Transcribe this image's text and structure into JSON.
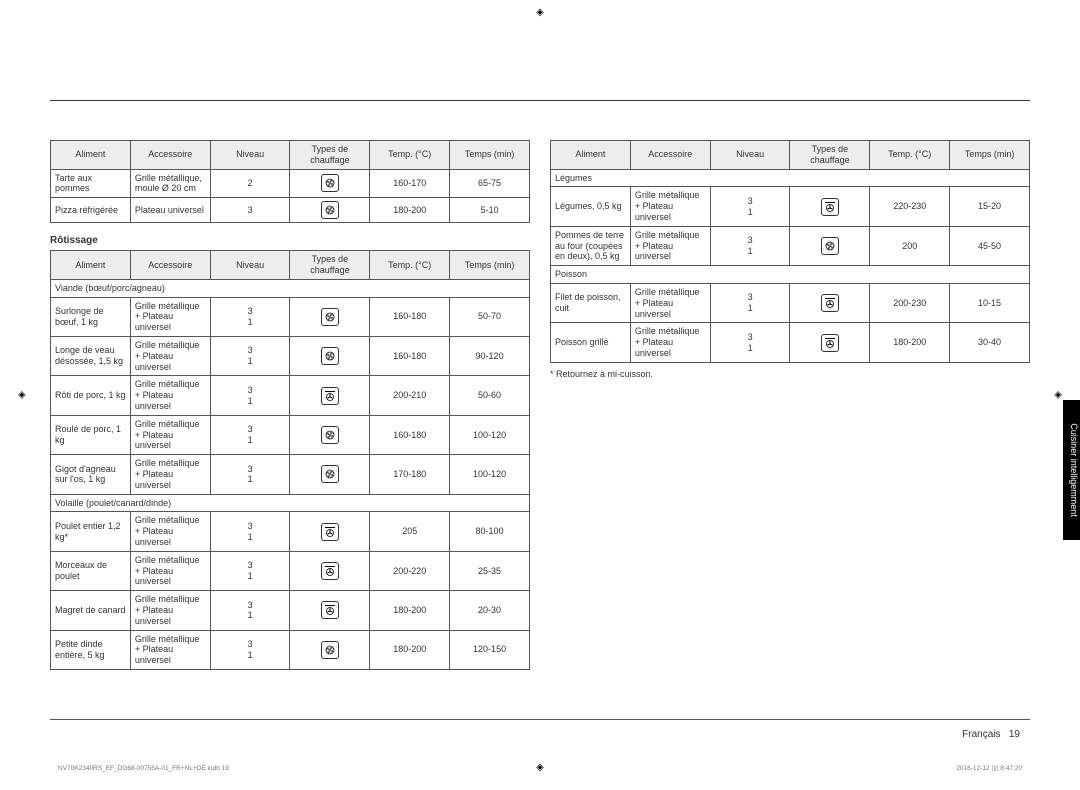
{
  "headers": {
    "aliment": "Aliment",
    "accessoire": "Accessoire",
    "niveau": "Niveau",
    "types": "Types de chauffage",
    "temp": "Temp. (°C)",
    "temps": "Temps (min)"
  },
  "icons": {
    "conventional": "conventional",
    "fan": "fan",
    "fan_top": "fan_top"
  },
  "left_top": {
    "rows": [
      {
        "aliment": "Tarte aux pommes",
        "access": "Grille métallique, moule Ø 20 cm",
        "niveau": "2",
        "icon": "conventional",
        "temp": "160-170",
        "temps": "65-75"
      },
      {
        "aliment": "Pizza réfrigérée",
        "access": "Plateau universel",
        "niveau": "3",
        "icon": "conventional",
        "temp": "180-200",
        "temps": "5-10"
      }
    ]
  },
  "left_heading": "Rôtissage",
  "left_bottom": {
    "sections": [
      {
        "title": "Viande (bœuf/porc/agneau)",
        "rows": [
          {
            "aliment": "Surlonge de bœuf, 1 kg",
            "access": "Grille métallique + Plateau universel",
            "niveau": "3\n1",
            "icon": "conventional",
            "temp": "160-180",
            "temps": "50-70"
          },
          {
            "aliment": "Longe de veau désossée, 1,5 kg",
            "access": "Grille métallique + Plateau universel",
            "niveau": "3\n1",
            "icon": "conventional",
            "temp": "160-180",
            "temps": "90-120"
          },
          {
            "aliment": "Rôti de porc, 1 kg",
            "access": "Grille métallique + Plateau universel",
            "niveau": "3\n1",
            "icon": "fan_top",
            "temp": "200-210",
            "temps": "50-60"
          },
          {
            "aliment": "Roulé de porc, 1 kg",
            "access": "Grille métallique + Plateau universel",
            "niveau": "3\n1",
            "icon": "conventional",
            "temp": "160-180",
            "temps": "100-120"
          },
          {
            "aliment": "Gigot d'agneau sur l'os, 1 kg",
            "access": "Grille métallique + Plateau universel",
            "niveau": "3\n1",
            "icon": "conventional",
            "temp": "170-180",
            "temps": "100-120"
          }
        ]
      },
      {
        "title": "Volaille (poulet/canard/dinde)",
        "rows": [
          {
            "aliment": "Poulet entier 1,2 kg*",
            "access": "Grille métallique + Plateau universel",
            "niveau": "3\n1",
            "icon": "fan_top",
            "temp": "205",
            "temps": "80-100"
          },
          {
            "aliment": "Morceaux de poulet",
            "access": "Grille métallique + Plateau universel",
            "niveau": "3\n1",
            "icon": "fan_top",
            "temp": "200-220",
            "temps": "25-35"
          },
          {
            "aliment": "Magret de canard",
            "access": "Grille métallique + Plateau universel",
            "niveau": "3\n1",
            "icon": "fan_top",
            "temp": "180-200",
            "temps": "20-30"
          },
          {
            "aliment": "Petite dinde entière, 5 kg",
            "access": "Grille métallique + Plateau universel",
            "niveau": "3\n1",
            "icon": "conventional",
            "temp": "180-200",
            "temps": "120-150"
          }
        ]
      }
    ]
  },
  "right": {
    "sections": [
      {
        "title": "Légumes",
        "rows": [
          {
            "aliment": "Légumes, 0,5 kg",
            "access": "Grille métallique + Plateau universel",
            "niveau": "3\n1",
            "icon": "fan_top",
            "temp": "220-230",
            "temps": "15-20"
          },
          {
            "aliment": "Pommes de terre au four (coupées en deux), 0,5 kg",
            "access": "Grille métallique + Plateau universel",
            "niveau": "3\n1",
            "icon": "conventional",
            "temp": "200",
            "temps": "45-50"
          }
        ]
      },
      {
        "title": "Poisson",
        "rows": [
          {
            "aliment": "Filet de poisson, cuit",
            "access": "Grille métallique + Plateau universel",
            "niveau": "3\n1",
            "icon": "fan_top",
            "temp": "200-230",
            "temps": "10-15"
          },
          {
            "aliment": "Poisson grillé",
            "access": "Grille métallique + Plateau universel",
            "niveau": "3\n1",
            "icon": "fan_top",
            "temp": "180-200",
            "temps": "30-40"
          }
        ]
      }
    ]
  },
  "footnote": "* Retournez à mi-cuisson.",
  "side_tab": "Cuisiner intelligemment",
  "footer_lang": "Français",
  "footer_page": "19",
  "print_left": "NV70K2340RS_EF_DG68-00755A-01_FR+NL+DE.indb   19",
  "print_right": "2016-12-12   ▯▯ 8:47:20"
}
